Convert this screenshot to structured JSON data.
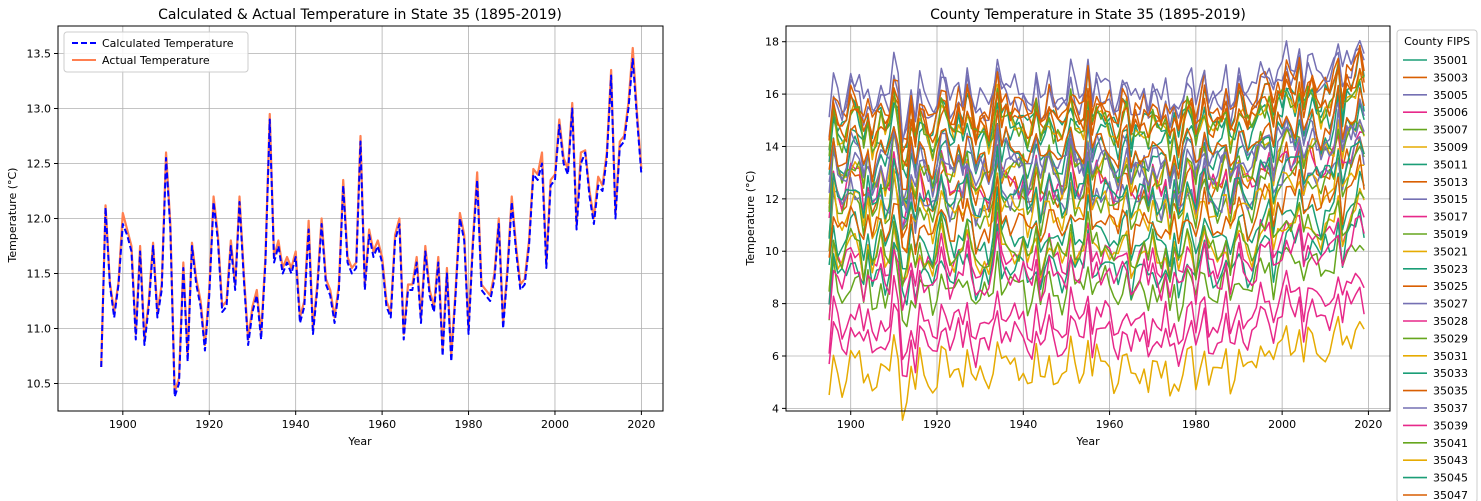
{
  "chart_data": [
    {
      "type": "line",
      "title": "Calculated & Actual Temperature in State 35 (1895-2019)",
      "xlabel": "Year",
      "ylabel": "Temperature (°C)",
      "xlim": [
        1885,
        2025
      ],
      "ylim": [
        10.25,
        13.75
      ],
      "xticks": [
        1900,
        1920,
        1940,
        1960,
        1980,
        2000,
        2020
      ],
      "yticks": [
        10.5,
        11.0,
        11.5,
        12.0,
        12.5,
        13.0,
        13.5
      ],
      "xtick_labels": [
        "1900",
        "1920",
        "1940",
        "1960",
        "1980",
        "2000",
        "2020"
      ],
      "ytick_labels": [
        "10.5",
        "11.0",
        "11.5",
        "12.0",
        "12.5",
        "13.0",
        "13.5"
      ],
      "grid": true,
      "legend_position": "top-left",
      "x_start": 1895,
      "series": [
        {
          "name": "Calculated Temperature",
          "color": "#0000ff",
          "linestyle": "dashed",
          "values": [
            10.65,
            12.1,
            11.4,
            11.1,
            11.4,
            11.95,
            11.85,
            11.7,
            10.9,
            11.7,
            10.85,
            11.2,
            11.75,
            11.1,
            11.35,
            12.55,
            11.9,
            10.38,
            10.5,
            11.55,
            10.7,
            11.75,
            11.4,
            11.2,
            10.8,
            11.3,
            12.15,
            11.8,
            11.15,
            11.2,
            11.75,
            11.35,
            12.15,
            11.45,
            10.85,
            11.15,
            11.3,
            10.9,
            11.6,
            12.9,
            11.6,
            11.75,
            11.5,
            11.6,
            11.5,
            11.65,
            11.05,
            11.2,
            11.9,
            10.95,
            11.35,
            11.95,
            11.4,
            11.3,
            11.05,
            11.35,
            12.3,
            11.6,
            11.5,
            11.55,
            12.7,
            11.35,
            11.85,
            11.65,
            11.75,
            11.6,
            11.2,
            11.1,
            11.8,
            11.95,
            10.9,
            11.35,
            11.35,
            11.6,
            11.05,
            11.7,
            11.3,
            11.15,
            11.6,
            10.75,
            11.5,
            10.7,
            11.3,
            12.0,
            11.8,
            10.95,
            11.75,
            12.35,
            11.35,
            11.3,
            11.25,
            11.45,
            11.95,
            11.0,
            11.5,
            12.15,
            11.7,
            11.35,
            11.4,
            11.75,
            12.4,
            12.35,
            12.5,
            11.55,
            12.3,
            12.35,
            12.85,
            12.5,
            12.4,
            13.0,
            11.9,
            12.5,
            12.6,
            12.2,
            11.95,
            12.3,
            12.25,
            12.55,
            13.3,
            12.0,
            12.65,
            12.7,
            13.0,
            13.45,
            12.9,
            12.4
          ]
        },
        {
          "name": "Actual Temperature",
          "color": "#ff7f50",
          "linestyle": "solid",
          "values": [
            10.65,
            12.12,
            11.42,
            11.15,
            11.42,
            12.05,
            11.9,
            11.75,
            10.95,
            11.75,
            10.9,
            11.25,
            11.78,
            11.15,
            11.4,
            12.6,
            11.95,
            10.42,
            10.55,
            11.6,
            10.75,
            11.78,
            11.45,
            11.25,
            10.85,
            11.35,
            12.2,
            11.85,
            11.2,
            11.25,
            11.8,
            11.4,
            12.2,
            11.5,
            10.9,
            11.2,
            11.35,
            10.95,
            11.65,
            12.95,
            11.65,
            11.8,
            11.55,
            11.65,
            11.55,
            11.7,
            11.1,
            11.25,
            11.98,
            11.0,
            11.4,
            12.0,
            11.45,
            11.35,
            11.1,
            11.4,
            12.35,
            11.65,
            11.55,
            11.6,
            12.75,
            11.4,
            11.9,
            11.7,
            11.8,
            11.65,
            11.25,
            11.15,
            11.85,
            12.0,
            10.95,
            11.4,
            11.4,
            11.65,
            11.1,
            11.75,
            11.35,
            11.2,
            11.65,
            10.8,
            11.55,
            10.75,
            11.35,
            12.05,
            11.85,
            11.0,
            11.8,
            12.42,
            11.4,
            11.35,
            11.3,
            11.5,
            12.0,
            11.05,
            11.55,
            12.2,
            11.75,
            11.4,
            11.45,
            11.8,
            12.45,
            12.4,
            12.6,
            11.6,
            12.35,
            12.4,
            12.9,
            12.55,
            12.45,
            13.05,
            11.95,
            12.6,
            12.62,
            12.25,
            12.0,
            12.38,
            12.3,
            12.6,
            13.35,
            12.05,
            12.7,
            12.75,
            13.05,
            13.55,
            12.95,
            12.45
          ]
        }
      ]
    },
    {
      "type": "line",
      "title": "County Temperature in State 35 (1895-2019)",
      "xlabel": "Year",
      "ylabel": "Temperature (°C)",
      "xlim": [
        1885,
        2025
      ],
      "ylim": [
        3.9,
        18.6
      ],
      "xticks": [
        1900,
        1920,
        1940,
        1960,
        1980,
        2000,
        2020
      ],
      "yticks": [
        4,
        6,
        8,
        10,
        12,
        14,
        16,
        18
      ],
      "xtick_labels": [
        "1900",
        "1920",
        "1940",
        "1960",
        "1980",
        "2000",
        "2020"
      ],
      "ytick_labels": [
        "4",
        "6",
        "8",
        "10",
        "12",
        "14",
        "16",
        "18"
      ],
      "grid": true,
      "legend_title": "County FIPS",
      "legend_position": "outside-right",
      "x_start": 1895,
      "x_end": 2019,
      "shared_anomaly": [
        -1.9,
        1.35,
        -0.05,
        -0.6,
        -0.05,
        1.25,
        1.05,
        0.75,
        -0.85,
        0.75,
        -0.95,
        -0.25,
        0.8,
        -0.45,
        0.05,
        2.45,
        1.15,
        -2.1,
        -1.85,
        0.45,
        -1.25,
        0.8,
        0.05,
        -0.35,
        -1.05,
        -0.05,
        1.65,
        0.95,
        -0.35,
        -0.25,
        0.85,
        0.05,
        1.65,
        0.25,
        -0.95,
        -0.35,
        -0.05,
        -0.85,
        0.55,
        3.05,
        0.55,
        0.85,
        0.35,
        0.55,
        0.35,
        0.65,
        -0.55,
        -0.25,
        1.25,
        -0.75,
        0.05,
        1.25,
        0.15,
        -0.05,
        -0.55,
        0.05,
        1.95,
        0.45,
        0.25,
        0.35,
        2.75,
        0.05,
        1.05,
        0.65,
        0.85,
        0.55,
        -0.25,
        -0.45,
        0.95,
        1.25,
        -0.85,
        0.05,
        0.05,
        0.55,
        -0.55,
        0.75,
        -0.05,
        -0.35,
        0.55,
        -1.15,
        0.35,
        -1.25,
        -0.05,
        1.35,
        0.95,
        -0.75,
        0.75,
        1.95,
        0.05,
        -0.05,
        -0.15,
        0.25,
        1.25,
        -0.65,
        0.35,
        1.65,
        0.75,
        0.05,
        0.15,
        0.85,
        2.05,
        1.95,
        2.25,
        0.35,
        1.85,
        1.95,
        2.95,
        2.25,
        2.05,
        3.25,
        1.05,
        2.25,
        2.45,
        1.65,
        1.15,
        1.85,
        1.75,
        2.35,
        3.85,
        1.25,
        2.55,
        2.65,
        3.25,
        4.15,
        3.05,
        2.05
      ],
      "shared_anomaly_scale": 0.55,
      "series": [
        {
          "name": "35001",
          "color": "#1b9e77",
          "base": 14.2
        },
        {
          "name": "35003",
          "color": "#d95f02",
          "base": 12.2
        },
        {
          "name": "35005",
          "color": "#7570b3",
          "base": 15.6
        },
        {
          "name": "35006",
          "color": "#e7298a",
          "base": 9.6
        },
        {
          "name": "35007",
          "color": "#66a61e",
          "base": 8.4
        },
        {
          "name": "35009",
          "color": "#e6ab02",
          "base": 14.6
        },
        {
          "name": "35011",
          "color": "#1b9e77",
          "base": 14.9
        },
        {
          "name": "35013",
          "color": "#d95f02",
          "base": 15.3
        },
        {
          "name": "35015",
          "color": "#7570b3",
          "base": 15.9
        },
        {
          "name": "35017",
          "color": "#e7298a",
          "base": 12.4
        },
        {
          "name": "35019",
          "color": "#66a61e",
          "base": 11.6
        },
        {
          "name": "35021",
          "color": "#e6ab02",
          "base": 12.9
        },
        {
          "name": "35023",
          "color": "#1b9e77",
          "base": 13.4
        },
        {
          "name": "35025",
          "color": "#d95f02",
          "base": 15.1
        },
        {
          "name": "35027",
          "color": "#7570b3",
          "base": 11.9
        },
        {
          "name": "35028",
          "color": "#e7298a",
          "base": 7.2
        },
        {
          "name": "35029",
          "color": "#66a61e",
          "base": 14.6
        },
        {
          "name": "35031",
          "color": "#e6ab02",
          "base": 9.8
        },
        {
          "name": "35033",
          "color": "#1b9e77",
          "base": 9.1
        },
        {
          "name": "35035",
          "color": "#d95f02",
          "base": 14.8
        },
        {
          "name": "35037",
          "color": "#7570b3",
          "base": 13.4
        },
        {
          "name": "35039",
          "color": "#e7298a",
          "base": 8.9
        },
        {
          "name": "35041",
          "color": "#66a61e",
          "base": 12.9
        },
        {
          "name": "35043",
          "color": "#e6ab02",
          "base": 11.4
        },
        {
          "name": "35045",
          "color": "#1b9e77",
          "base": 10.4
        },
        {
          "name": "35047",
          "color": "#d95f02",
          "base": 10.9
        },
        {
          "name": "",
          "color": "#e7298a",
          "base": 6.5
        },
        {
          "name": "",
          "color": "#e6ab02",
          "base": 5.3
        },
        {
          "name": "",
          "color": "#66a61e",
          "base": 9.9
        },
        {
          "name": "",
          "color": "#1b9e77",
          "base": 12.0
        },
        {
          "name": "",
          "color": "#7570b3",
          "base": 13.0
        },
        {
          "name": "",
          "color": "#d95f02",
          "base": 13.7
        }
      ]
    }
  ]
}
